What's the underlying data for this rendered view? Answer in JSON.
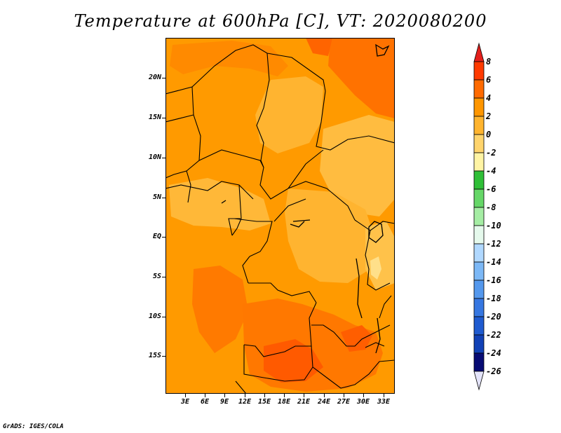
{
  "title": "Temperature at 600hPa [C], VT: 2020080200",
  "credit": "GrADS: IGES/COLA",
  "map": {
    "lat_labels": [
      "20N",
      "15N",
      "10N",
      "5N",
      "EQ",
      "5S",
      "10S",
      "15S"
    ],
    "lon_labels": [
      "3E",
      "6E",
      "9E",
      "12E",
      "15E",
      "18E",
      "21E",
      "24E",
      "27E",
      "30E",
      "33E"
    ]
  },
  "colorbar": {
    "labels": [
      "8",
      "6",
      "4",
      "2",
      "0",
      "-2",
      "-4",
      "-6",
      "-8",
      "-10",
      "-12",
      "-14",
      "-16",
      "-18",
      "-20",
      "-22",
      "-24",
      "-26"
    ],
    "colors": [
      "#ff3a00",
      "#ff6a00",
      "#ff9600",
      "#ffb42e",
      "#ffd46c",
      "#fff4a4",
      "#2fbf37",
      "#66d768",
      "#a5eda4",
      "#e5f9ec",
      "#b0d8ff",
      "#7cb8f6",
      "#5498ed",
      "#3677e1",
      "#1f5bd0",
      "#1141b6",
      "#070b74"
    ],
    "top_arrow_color": "#e4201c",
    "bottom_arrow_color": "#e4e4fa"
  }
}
